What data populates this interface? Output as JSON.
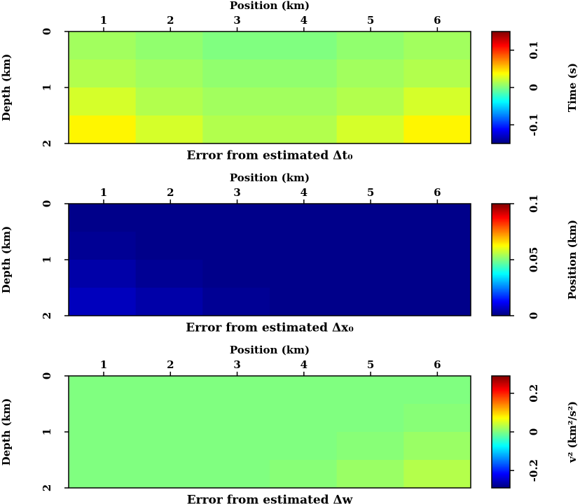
{
  "chart_data": [
    {
      "type": "heatmap",
      "title": "Error from estimated Δt₀",
      "xlabel": "Position (km)",
      "ylabel": "Depth (km)",
      "colorbar_label": "Time (s)",
      "xlim": [
        0.475,
        6.5
      ],
      "xticks": [
        1,
        2,
        3,
        4,
        5,
        6
      ],
      "ylim": [
        0,
        2
      ],
      "yticks": [
        0,
        1,
        2
      ],
      "clim": [
        -0.15,
        0.15
      ],
      "cticks": [
        -0.1,
        0,
        0.1
      ],
      "z": [
        [
          0.01,
          0.005,
          0,
          0,
          0.005,
          0.01
        ],
        [
          0.015,
          0.01,
          0.005,
          0.005,
          0.01,
          0.015
        ],
        [
          0.025,
          0.015,
          0.01,
          0.01,
          0.015,
          0.025
        ],
        [
          0.04,
          0.025,
          0.015,
          0.015,
          0.025,
          0.04
        ]
      ]
    },
    {
      "type": "heatmap",
      "title": "Error from estimated Δx₀",
      "xlabel": "Position (km)",
      "ylabel": "Depth (km)",
      "colorbar_label": "Position (km)",
      "xlim": [
        0.475,
        6.5
      ],
      "xticks": [
        1,
        2,
        3,
        4,
        5,
        6
      ],
      "ylim": [
        0,
        2
      ],
      "yticks": [
        0,
        1,
        2
      ],
      "clim": [
        0,
        0.1
      ],
      "cticks": [
        0,
        0.05,
        0.1
      ],
      "z": [
        [
          0.001,
          0.001,
          0.001,
          0.001,
          0.001,
          0.001
        ],
        [
          0.002,
          0.001,
          0.001,
          0.001,
          0.001,
          0.001
        ],
        [
          0.004,
          0.002,
          0.001,
          0.001,
          0.001,
          0.001
        ],
        [
          0.006,
          0.004,
          0.002,
          0.001,
          0.001,
          0.001
        ]
      ]
    },
    {
      "type": "heatmap",
      "title": "Error from estimated Δw",
      "xlabel": "Position (km)",
      "ylabel": "Depth (km)",
      "colorbar_label": "v² (km²/s²)",
      "xlim": [
        0.475,
        6.5
      ],
      "xticks": [
        1,
        2,
        3,
        4,
        5,
        6
      ],
      "ylim": [
        0,
        2
      ],
      "yticks": [
        0,
        1,
        2
      ],
      "clim": [
        -0.29,
        0.29
      ],
      "cticks": [
        -0.2,
        0,
        0.2
      ],
      "z": [
        [
          0,
          0,
          0,
          0,
          0,
          0
        ],
        [
          0,
          0,
          0,
          0,
          0,
          0.005
        ],
        [
          0,
          0,
          0,
          0,
          0.005,
          0.015
        ],
        [
          0,
          0,
          0,
          0.005,
          0.015,
          0.03
        ]
      ]
    }
  ]
}
